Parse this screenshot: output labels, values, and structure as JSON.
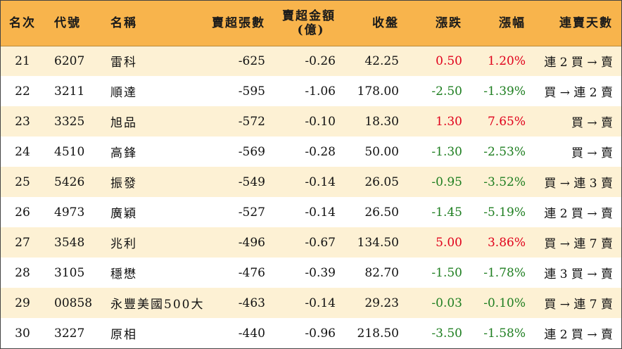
{
  "colors": {
    "header_bg": "#f8b44c",
    "row_odd_bg": "#fdf1d4",
    "row_even_bg": "#ffffff",
    "up": "#e0001b",
    "down": "#1e7e20"
  },
  "headers": {
    "rank": "名次",
    "code": "代號",
    "name": "名稱",
    "oversold_lots": "賣超張數",
    "oversold_amount_line1": "賣超金額",
    "oversold_amount_line2": "(億)",
    "close": "收盤",
    "change": "漲跌",
    "change_pct": "漲幅",
    "consecutive_days": "連賣天數"
  },
  "rows": [
    {
      "rank": "21",
      "code": "6207",
      "name": "雷科",
      "oversold_lots": "-625",
      "oversold_amount": "-0.26",
      "close": "42.25",
      "change": "0.50",
      "change_pct": "1.20%",
      "trend": "up",
      "consecutive_days": "連 2 買 → 賣"
    },
    {
      "rank": "22",
      "code": "3211",
      "name": "順達",
      "oversold_lots": "-595",
      "oversold_amount": "-1.06",
      "close": "178.00",
      "change": "-2.50",
      "change_pct": "-1.39%",
      "trend": "down",
      "consecutive_days": "買 → 連 2 賣"
    },
    {
      "rank": "23",
      "code": "3325",
      "name": "旭品",
      "oversold_lots": "-572",
      "oversold_amount": "-0.10",
      "close": "18.30",
      "change": "1.30",
      "change_pct": "7.65%",
      "trend": "up",
      "consecutive_days": "買 → 賣"
    },
    {
      "rank": "24",
      "code": "4510",
      "name": "高鋒",
      "oversold_lots": "-569",
      "oversold_amount": "-0.28",
      "close": "50.00",
      "change": "-1.30",
      "change_pct": "-2.53%",
      "trend": "down",
      "consecutive_days": "買 → 賣"
    },
    {
      "rank": "25",
      "code": "5426",
      "name": "振發",
      "oversold_lots": "-549",
      "oversold_amount": "-0.14",
      "close": "26.05",
      "change": "-0.95",
      "change_pct": "-3.52%",
      "trend": "down",
      "consecutive_days": "買 → 連 3 賣"
    },
    {
      "rank": "26",
      "code": "4973",
      "name": "廣穎",
      "oversold_lots": "-527",
      "oversold_amount": "-0.14",
      "close": "26.50",
      "change": "-1.45",
      "change_pct": "-5.19%",
      "trend": "down",
      "consecutive_days": "連 2 買 → 賣"
    },
    {
      "rank": "27",
      "code": "3548",
      "name": "兆利",
      "oversold_lots": "-496",
      "oversold_amount": "-0.67",
      "close": "134.50",
      "change": "5.00",
      "change_pct": "3.86%",
      "trend": "up",
      "consecutive_days": "買 → 連 7 賣"
    },
    {
      "rank": "28",
      "code": "3105",
      "name": "穩懋",
      "oversold_lots": "-476",
      "oversold_amount": "-0.39",
      "close": "82.70",
      "change": "-1.50",
      "change_pct": "-1.78%",
      "trend": "down",
      "consecutive_days": "連 3 買 → 賣"
    },
    {
      "rank": "29",
      "code": "00858",
      "name": "永豐美國500大",
      "oversold_lots": "-463",
      "oversold_amount": "-0.14",
      "close": "29.23",
      "change": "-0.03",
      "change_pct": "-0.10%",
      "trend": "down",
      "consecutive_days": "買 → 連 7 賣"
    },
    {
      "rank": "30",
      "code": "3227",
      "name": "原相",
      "oversold_lots": "-440",
      "oversold_amount": "-0.96",
      "close": "218.50",
      "change": "-3.50",
      "change_pct": "-1.58%",
      "trend": "down",
      "consecutive_days": "連 2 買 → 賣"
    }
  ]
}
